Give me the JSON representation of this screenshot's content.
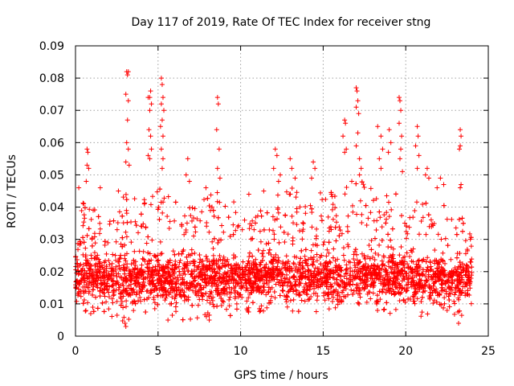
{
  "chart_data": {
    "type": "scatter",
    "title": "Day 117 of 2019, Rate Of TEC Index for receiver stng",
    "xlabel": "GPS time / hours",
    "ylabel": "ROTI / TECUs",
    "xlim": [
      0,
      25
    ],
    "ylim": [
      0,
      0.09
    ],
    "xticks": [
      0,
      5,
      10,
      15,
      20,
      25
    ],
    "xtick_labels": [
      "0",
      "5",
      "10",
      "15",
      "20",
      "25"
    ],
    "yticks": [
      0,
      0.01,
      0.02,
      0.03,
      0.04,
      0.05,
      0.06,
      0.07,
      0.08,
      0.09
    ],
    "ytick_labels": [
      "0",
      "0.01",
      "0.02",
      "0.03",
      "0.04",
      "0.05",
      "0.06",
      "0.07",
      "0.08",
      "0.09"
    ],
    "grid": true,
    "marker": "+",
    "color": "#ff0000",
    "data_extent_hours": [
      0,
      24
    ],
    "envelope": [
      {
        "x": 0.0,
        "ymin": 0.008,
        "ymax": 0.036
      },
      {
        "x": 0.5,
        "ymin": 0.006,
        "ymax": 0.042
      },
      {
        "x": 1.0,
        "ymin": 0.007,
        "ymax": 0.04
      },
      {
        "x": 2.0,
        "ymin": 0.006,
        "ymax": 0.036
      },
      {
        "x": 2.5,
        "ymin": 0.006,
        "ymax": 0.036
      },
      {
        "x": 3.0,
        "ymin": 0.004,
        "ymax": 0.045
      },
      {
        "x": 4.0,
        "ymin": 0.007,
        "ymax": 0.045
      },
      {
        "x": 4.5,
        "ymin": 0.007,
        "ymax": 0.047
      },
      {
        "x": 5.0,
        "ymin": 0.006,
        "ymax": 0.048
      },
      {
        "x": 6.0,
        "ymin": 0.005,
        "ymax": 0.042
      },
      {
        "x": 7.0,
        "ymin": 0.005,
        "ymax": 0.04
      },
      {
        "x": 8.0,
        "ymin": 0.006,
        "ymax": 0.044
      },
      {
        "x": 9.0,
        "ymin": 0.005,
        "ymax": 0.046
      },
      {
        "x": 10.0,
        "ymin": 0.007,
        "ymax": 0.04
      },
      {
        "x": 11.0,
        "ymin": 0.007,
        "ymax": 0.04
      },
      {
        "x": 12.0,
        "ymin": 0.008,
        "ymax": 0.043
      },
      {
        "x": 13.0,
        "ymin": 0.006,
        "ymax": 0.047
      },
      {
        "x": 14.0,
        "ymin": 0.007,
        "ymax": 0.042
      },
      {
        "x": 15.0,
        "ymin": 0.007,
        "ymax": 0.046
      },
      {
        "x": 16.0,
        "ymin": 0.006,
        "ymax": 0.044
      },
      {
        "x": 17.0,
        "ymin": 0.007,
        "ymax": 0.05
      },
      {
        "x": 18.0,
        "ymin": 0.007,
        "ymax": 0.046
      },
      {
        "x": 19.0,
        "ymin": 0.007,
        "ymax": 0.045
      },
      {
        "x": 20.0,
        "ymin": 0.006,
        "ymax": 0.044
      },
      {
        "x": 21.0,
        "ymin": 0.006,
        "ymax": 0.042
      },
      {
        "x": 22.0,
        "ymin": 0.006,
        "ymax": 0.042
      },
      {
        "x": 23.0,
        "ymin": 0.005,
        "ymax": 0.04
      },
      {
        "x": 24.0,
        "ymin": 0.007,
        "ymax": 0.032
      }
    ],
    "points": [
      [
        3.1,
        0.082
      ],
      [
        3.15,
        0.081
      ],
      [
        3.2,
        0.082
      ],
      [
        3.05,
        0.075
      ],
      [
        3.2,
        0.073
      ],
      [
        3.15,
        0.067
      ],
      [
        3.1,
        0.06
      ],
      [
        3.2,
        0.058
      ],
      [
        3.05,
        0.054
      ],
      [
        3.25,
        0.053
      ],
      [
        4.4,
        0.074
      ],
      [
        4.5,
        0.074
      ],
      [
        4.55,
        0.076
      ],
      [
        4.6,
        0.072
      ],
      [
        4.5,
        0.07
      ],
      [
        4.45,
        0.064
      ],
      [
        4.55,
        0.062
      ],
      [
        4.6,
        0.058
      ],
      [
        4.4,
        0.056
      ],
      [
        4.5,
        0.055
      ],
      [
        5.2,
        0.08
      ],
      [
        5.25,
        0.078
      ],
      [
        5.3,
        0.074
      ],
      [
        5.2,
        0.072
      ],
      [
        5.35,
        0.07
      ],
      [
        5.25,
        0.067
      ],
      [
        5.15,
        0.065
      ],
      [
        5.3,
        0.062
      ],
      [
        5.2,
        0.058
      ],
      [
        5.3,
        0.055
      ],
      [
        5.25,
        0.052
      ],
      [
        0.7,
        0.058
      ],
      [
        0.75,
        0.057
      ],
      [
        0.7,
        0.053
      ],
      [
        0.8,
        0.052
      ],
      [
        0.65,
        0.048
      ],
      [
        8.6,
        0.074
      ],
      [
        8.65,
        0.072
      ],
      [
        8.55,
        0.064
      ],
      [
        8.7,
        0.058
      ],
      [
        8.6,
        0.052
      ],
      [
        8.75,
        0.049
      ],
      [
        6.8,
        0.055
      ],
      [
        6.7,
        0.05
      ],
      [
        6.9,
        0.048
      ],
      [
        12.1,
        0.058
      ],
      [
        12.2,
        0.056
      ],
      [
        12.0,
        0.052
      ],
      [
        12.4,
        0.05
      ],
      [
        12.3,
        0.048
      ],
      [
        13.0,
        0.055
      ],
      [
        13.1,
        0.052
      ],
      [
        13.3,
        0.049
      ],
      [
        14.4,
        0.054
      ],
      [
        14.5,
        0.052
      ],
      [
        14.3,
        0.049
      ],
      [
        16.3,
        0.067
      ],
      [
        16.35,
        0.066
      ],
      [
        16.2,
        0.062
      ],
      [
        16.4,
        0.058
      ],
      [
        16.3,
        0.057
      ],
      [
        17.0,
        0.077
      ],
      [
        17.05,
        0.076
      ],
      [
        17.1,
        0.073
      ],
      [
        17.0,
        0.071
      ],
      [
        17.15,
        0.069
      ],
      [
        17.1,
        0.063
      ],
      [
        17.0,
        0.059
      ],
      [
        17.2,
        0.055
      ],
      [
        17.3,
        0.052
      ],
      [
        17.2,
        0.05
      ],
      [
        18.3,
        0.065
      ],
      [
        18.5,
        0.062
      ],
      [
        18.6,
        0.058
      ],
      [
        18.4,
        0.055
      ],
      [
        18.5,
        0.052
      ],
      [
        19.0,
        0.064
      ],
      [
        19.1,
        0.06
      ],
      [
        18.95,
        0.057
      ],
      [
        19.6,
        0.074
      ],
      [
        19.65,
        0.073
      ],
      [
        19.7,
        0.07
      ],
      [
        19.6,
        0.066
      ],
      [
        19.75,
        0.062
      ],
      [
        19.7,
        0.058
      ],
      [
        19.65,
        0.055
      ],
      [
        19.8,
        0.051
      ],
      [
        20.7,
        0.065
      ],
      [
        20.75,
        0.062
      ],
      [
        20.6,
        0.059
      ],
      [
        20.8,
        0.056
      ],
      [
        20.7,
        0.052
      ],
      [
        21.3,
        0.052
      ],
      [
        21.2,
        0.05
      ],
      [
        21.4,
        0.049
      ],
      [
        22.1,
        0.049
      ],
      [
        22.3,
        0.047
      ],
      [
        23.3,
        0.064
      ],
      [
        23.35,
        0.062
      ],
      [
        23.3,
        0.059
      ],
      [
        23.25,
        0.058
      ],
      [
        23.35,
        0.047
      ],
      [
        23.3,
        0.046
      ],
      [
        1.5,
        0.046
      ],
      [
        2.6,
        0.045
      ],
      [
        7.9,
        0.046
      ],
      [
        10.5,
        0.044
      ],
      [
        11.4,
        0.045
      ],
      [
        15.5,
        0.044
      ],
      [
        21.9,
        0.046
      ],
      [
        0.2,
        0.046
      ],
      [
        3.0,
        0.004
      ],
      [
        3.05,
        0.003
      ],
      [
        23.2,
        0.004
      ],
      [
        8.1,
        0.005
      ],
      [
        5.6,
        0.005
      ]
    ]
  }
}
